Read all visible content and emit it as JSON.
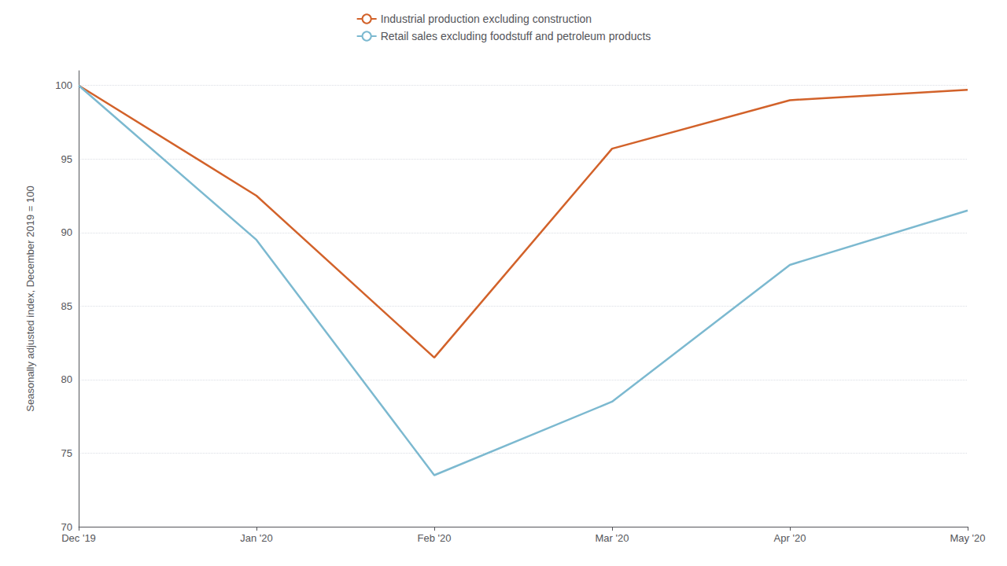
{
  "chart_data": {
    "type": "line",
    "ylabel": "Seasonally adjusted index, December 2019 = 100",
    "categories": [
      "Dec '19",
      "Jan '20",
      "Feb '20",
      "Mar '20",
      "Apr '20",
      "May '20"
    ],
    "series": [
      {
        "name": "Industrial production excluding construction",
        "color": "#D2622A",
        "values": [
          100,
          92.5,
          81.5,
          95.7,
          99.0,
          99.7
        ]
      },
      {
        "name": "Retail sales excluding foodstuff and petroleum products",
        "color": "#7CB9D0",
        "values": [
          100,
          89.5,
          73.5,
          78.5,
          87.8,
          91.5
        ]
      }
    ],
    "ylim": [
      70,
      101
    ],
    "yticks": [
      70,
      75,
      80,
      85,
      90,
      95,
      100
    ],
    "grid": true,
    "legend": "top"
  }
}
